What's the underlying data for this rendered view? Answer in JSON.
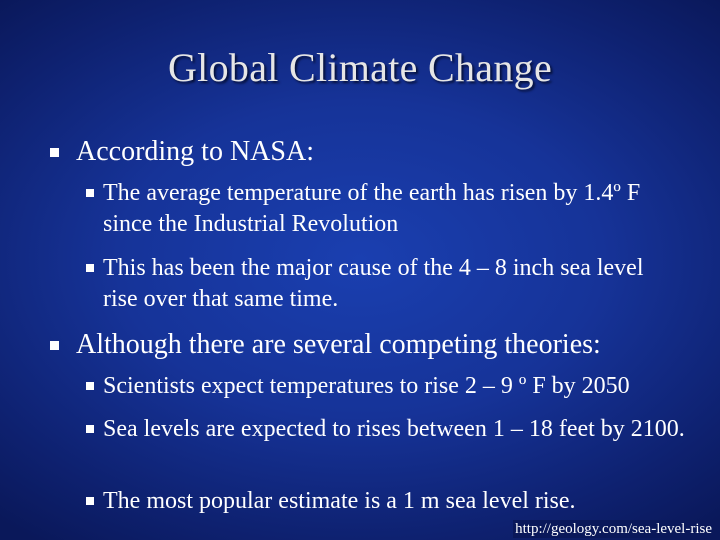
{
  "slide": {
    "title": "Global Climate Change",
    "bullets": [
      {
        "text": "According to NASA:",
        "sub": [
          "The average temperature of the earth has risen by 1.4º F since the Industrial Revolution",
          "This has been the major cause of the 4 – 8 inch sea level rise over that same time."
        ]
      },
      {
        "text": "Although there are several competing theories:",
        "sub": [
          "Scientists expect temperatures to rise 2 – 9 º F by 2050",
          "Sea levels are expected to rises between 1 – 18 feet by 2100.",
          "The most popular estimate is a 1 m sea level rise."
        ]
      }
    ],
    "source": "http://geology.com/sea-level-rise"
  },
  "colors": {
    "background": "#163398",
    "text": "#ffffff",
    "title": "#e6e6e6"
  },
  "icons": {
    "bullet": "square-bullet-icon"
  }
}
